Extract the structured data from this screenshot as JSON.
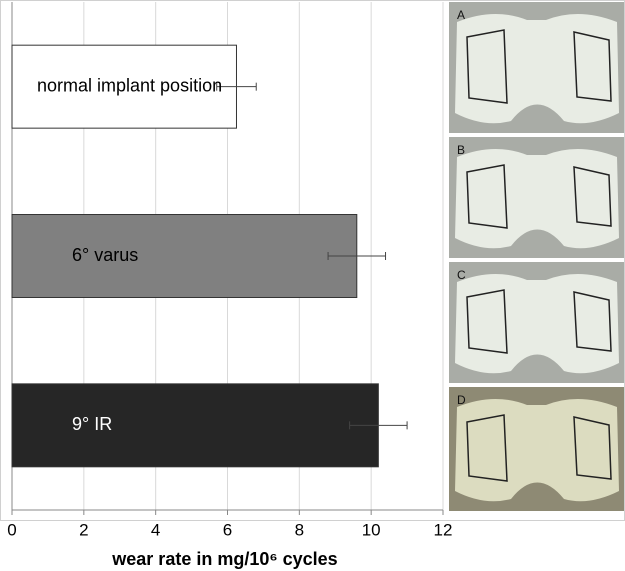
{
  "chart_data": {
    "type": "barh",
    "categories": [
      "normal implant position",
      "6° varus",
      "9° IR"
    ],
    "values": [
      6.25,
      9.6,
      10.2
    ],
    "errors": [
      0.55,
      0.8,
      0.8
    ],
    "colors": [
      "#ffffff",
      "#808080",
      "#262626"
    ],
    "xlim": [
      0,
      12
    ],
    "xticks": [
      0,
      2,
      4,
      6,
      8,
      10,
      12
    ],
    "grid": true,
    "x_label": "wear rate in mg/10⁶ cycles"
  },
  "images": [
    {
      "label": "A"
    },
    {
      "label": "B"
    },
    {
      "label": "C"
    },
    {
      "label": "D"
    }
  ]
}
